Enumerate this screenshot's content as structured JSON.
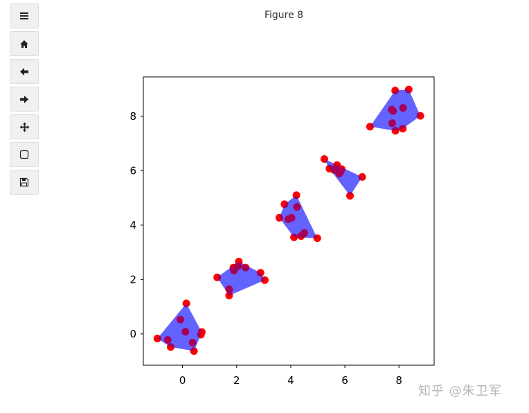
{
  "window": {
    "figure_title": "Figure 8"
  },
  "toolbar": {
    "buttons": [
      {
        "name": "menu",
        "icon": "hamburger-icon"
      },
      {
        "name": "home",
        "icon": "home-icon"
      },
      {
        "name": "back",
        "icon": "arrow-left-icon"
      },
      {
        "name": "forward",
        "icon": "arrow-right-icon"
      },
      {
        "name": "pan",
        "icon": "move-icon"
      },
      {
        "name": "zoom",
        "icon": "zoom-rect-icon"
      },
      {
        "name": "save",
        "icon": "save-icon"
      }
    ]
  },
  "watermark": "知乎 @朱卫军",
  "chart_data": {
    "type": "scatter",
    "title": "",
    "xlabel": "",
    "ylabel": "",
    "xlim": [
      -1.45,
      9.3
    ],
    "ylim": [
      -1.15,
      9.45
    ],
    "xticks": [
      0,
      2,
      4,
      6,
      8
    ],
    "yticks": [
      0,
      2,
      4,
      6,
      8
    ],
    "point_color": "#ff0000",
    "hull_color": "#0000ff",
    "hull_alpha": 0.4,
    "clusters": [
      {
        "points": [
          [
            -0.93,
            -0.17
          ],
          [
            0.14,
            1.12
          ],
          [
            -0.08,
            0.53
          ],
          [
            0.11,
            0.08
          ],
          [
            0.71,
            0.07
          ],
          [
            0.68,
            -0.03
          ],
          [
            0.37,
            -0.32
          ],
          [
            -0.55,
            -0.22
          ],
          [
            -0.44,
            -0.48
          ],
          [
            0.42,
            -0.63
          ]
        ],
        "hull": [
          [
            -0.93,
            -0.17
          ],
          [
            0.14,
            1.12
          ],
          [
            0.71,
            0.07
          ],
          [
            0.68,
            -0.03
          ],
          [
            0.42,
            -0.63
          ],
          [
            -0.44,
            -0.48
          ]
        ]
      },
      {
        "points": [
          [
            1.28,
            2.08
          ],
          [
            2.08,
            2.66
          ],
          [
            1.88,
            2.44
          ],
          [
            2.05,
            2.49
          ],
          [
            2.33,
            2.44
          ],
          [
            1.9,
            2.33
          ],
          [
            2.88,
            2.25
          ],
          [
            3.04,
            1.98
          ],
          [
            1.72,
            1.64
          ],
          [
            1.72,
            1.41
          ]
        ],
        "hull": [
          [
            1.28,
            2.08
          ],
          [
            2.08,
            2.66
          ],
          [
            2.88,
            2.25
          ],
          [
            3.04,
            1.98
          ],
          [
            1.72,
            1.41
          ]
        ]
      },
      {
        "points": [
          [
            4.21,
            5.1
          ],
          [
            3.77,
            4.77
          ],
          [
            4.23,
            4.67
          ],
          [
            3.58,
            4.27
          ],
          [
            3.91,
            4.22
          ],
          [
            4.03,
            4.27
          ],
          [
            4.12,
            3.55
          ],
          [
            4.38,
            3.6
          ],
          [
            4.5,
            3.71
          ],
          [
            4.98,
            3.52
          ]
        ],
        "hull": [
          [
            3.58,
            4.27
          ],
          [
            3.77,
            4.77
          ],
          [
            4.21,
            5.1
          ],
          [
            4.98,
            3.52
          ],
          [
            4.12,
            3.55
          ]
        ]
      },
      {
        "points": [
          [
            5.24,
            6.43
          ],
          [
            5.43,
            6.08
          ],
          [
            5.6,
            6.03
          ],
          [
            5.71,
            6.21
          ],
          [
            5.8,
            6.0
          ],
          [
            5.88,
            6.06
          ],
          [
            5.79,
            5.9
          ],
          [
            5.83,
            5.94
          ],
          [
            6.19,
            5.08
          ],
          [
            6.64,
            5.77
          ]
        ],
        "hull": [
          [
            5.24,
            6.43
          ],
          [
            6.64,
            5.77
          ],
          [
            6.19,
            5.08
          ],
          [
            5.43,
            6.08
          ]
        ]
      },
      {
        "points": [
          [
            7.86,
            8.95
          ],
          [
            8.36,
            8.99
          ],
          [
            7.73,
            8.25
          ],
          [
            7.78,
            8.2
          ],
          [
            8.15,
            8.31
          ],
          [
            8.79,
            8.02
          ],
          [
            7.75,
            7.75
          ],
          [
            7.87,
            7.47
          ],
          [
            8.14,
            7.55
          ],
          [
            6.93,
            7.62
          ]
        ],
        "hull": [
          [
            6.93,
            7.62
          ],
          [
            7.86,
            8.95
          ],
          [
            8.36,
            8.99
          ],
          [
            8.79,
            8.02
          ],
          [
            8.14,
            7.55
          ],
          [
            7.87,
            7.47
          ]
        ]
      }
    ]
  }
}
